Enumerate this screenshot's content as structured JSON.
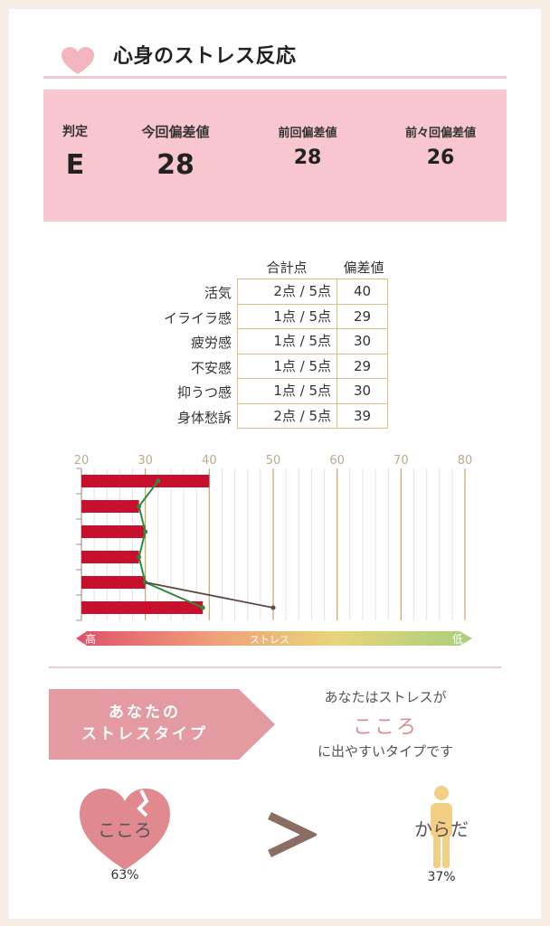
{
  "header": {
    "title": "心身のストレス反応",
    "icon": "heart-icon"
  },
  "summary": {
    "judgement_label": "判定",
    "judgement_value": "E",
    "current_label": "今回偏差値",
    "current_value": "28",
    "previous_label": "前回偏差値",
    "previous_value": "28",
    "before_previous_label": "前々回偏差値",
    "before_previous_value": "26"
  },
  "table": {
    "col_total": "合計点",
    "col_deviation": "偏差値",
    "rows": [
      {
        "label": "活気",
        "points": "2点 / 5点",
        "deviation": "40"
      },
      {
        "label": "イライラ感",
        "points": "1点 / 5点",
        "deviation": "29"
      },
      {
        "label": "疲労感",
        "points": "1点 / 5点",
        "deviation": "30"
      },
      {
        "label": "不安感",
        "points": "1点 / 5点",
        "deviation": "29"
      },
      {
        "label": "抑うつ感",
        "points": "1点 / 5点",
        "deviation": "30"
      },
      {
        "label": "身体愁訴",
        "points": "2点 / 5点",
        "deviation": "39"
      }
    ]
  },
  "chart_data": {
    "type": "bar",
    "orientation": "horizontal",
    "categories": [
      "活気",
      "イライラ感",
      "疲労感",
      "不安感",
      "抑うつ感",
      "身体愁訴"
    ],
    "values": [
      40,
      29,
      30,
      29,
      30,
      39
    ],
    "xlim": [
      20,
      80
    ],
    "xticks": [
      "20",
      "30",
      "40",
      "50",
      "60",
      "70",
      "80"
    ],
    "overlay_line": [
      32,
      29,
      30,
      29,
      30,
      39
    ],
    "extra_line": [
      [
        30,
        50
      ]
    ],
    "grid": true,
    "scale_label": "ストレス",
    "scale_high": "高",
    "scale_low": "低",
    "colors": {
      "bar": "#c8102e",
      "line": "#2e8b3e",
      "extra_line": "#5a4a42"
    }
  },
  "stress_type": {
    "banner": [
      "あなたの",
      "ストレスタイプ"
    ],
    "line1": "あなたはストレスが",
    "result": "こころ",
    "line2": "に出やすいタイプです",
    "mind_label": "こころ",
    "mind_percent": "63%",
    "body_label": "からだ",
    "body_percent": "37%",
    "colors": {
      "accent": "#e08a94",
      "mind": "#e0898f",
      "body": "#f3cf86"
    }
  }
}
